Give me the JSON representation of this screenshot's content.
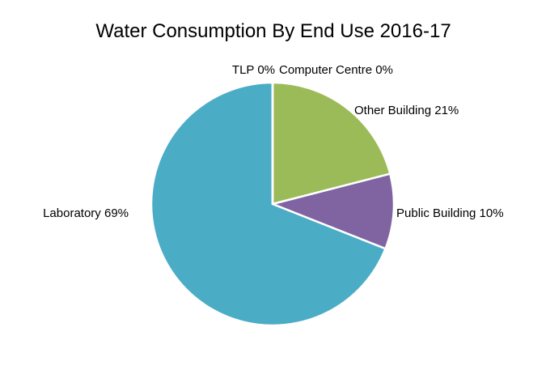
{
  "chart_data": {
    "type": "pie",
    "title": "Water Consumption  By End Use 2016-17",
    "categories": [
      "Other Building",
      "Public Building",
      "Laboratory",
      "TLP",
      "Computer Centre"
    ],
    "values": [
      21,
      10,
      69,
      0,
      0
    ],
    "labels": [
      "Other Building 21%",
      "Public Building 10%",
      "Laboratory 69%",
      "TLP 0%",
      "Computer Centre 0%"
    ],
    "colors": [
      "#9BBB59",
      "#8064A2",
      "#4BACC6",
      "#4F81BD",
      "#C0504D"
    ],
    "legend": "none"
  }
}
